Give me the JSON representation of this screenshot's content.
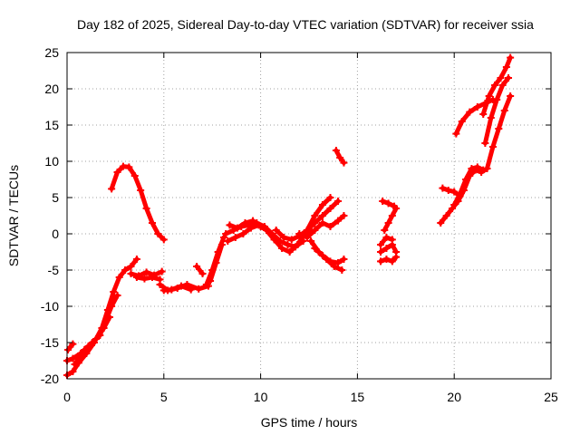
{
  "chart_data": {
    "type": "scatter",
    "title": "Day 182 of 2025, Sidereal Day-to-day VTEC variation (SDTVAR) for receiver ssia",
    "xlabel": "GPS time / hours",
    "ylabel": "SDTVAR / TECUs",
    "xlim": [
      0,
      25
    ],
    "ylim": [
      -20,
      25
    ],
    "xticks": [
      0,
      5,
      10,
      15,
      20,
      25
    ],
    "yticks": [
      -20,
      -15,
      -10,
      -5,
      0,
      5,
      10,
      15,
      20,
      25
    ],
    "grid": true,
    "legend": "none",
    "series_color": "#ff0000",
    "series": [
      {
        "segments": [
          {
            "x": [
              0.0,
              0.3,
              0.6,
              1.0,
              1.4,
              1.8,
              2.1,
              2.4,
              2.7,
              3.0,
              3.3,
              3.6
            ],
            "y": [
              -19.5,
              -19.0,
              -17.8,
              -16.5,
              -15.0,
              -13.0,
              -10.5,
              -8.0,
              -6.0,
              -5.0,
              -4.5,
              -3.5
            ]
          },
          {
            "x": [
              0.0,
              0.3,
              0.7,
              1.1,
              1.5,
              1.9,
              2.2
            ],
            "y": [
              -17.5,
              -17.2,
              -16.5,
              -15.5,
              -14.5,
              -13.0,
              -11.5
            ]
          },
          {
            "x": [
              0.05,
              0.3
            ],
            "y": [
              -16.0,
              -15.2
            ]
          },
          {
            "x": [
              0.4,
              0.9,
              1.3,
              1.7,
              2.0,
              2.3,
              2.6
            ],
            "y": [
              -18.0,
              -16.0,
              -15.0,
              -14.0,
              -12.0,
              -10.0,
              -8.5
            ]
          },
          {
            "x": [
              3.3,
              3.7,
              4.1,
              4.5,
              4.9
            ],
            "y": [
              -5.5,
              -5.8,
              -5.3,
              -5.7,
              -5.2
            ]
          },
          {
            "x": [
              3.6,
              4.0,
              4.4,
              4.8
            ],
            "y": [
              -6.0,
              -6.2,
              -6.0,
              -6.3
            ]
          },
          {
            "x": [
              2.3,
              2.6,
              2.9,
              3.2,
              3.5,
              3.8,
              4.1,
              4.4,
              4.7,
              5.0
            ],
            "y": [
              6.2,
              8.5,
              9.3,
              9.2,
              8.0,
              6.0,
              3.5,
              1.5,
              0.0,
              -0.8
            ]
          },
          {
            "x": [
              4.8,
              5.2,
              5.7,
              6.2,
              6.8,
              7.3
            ],
            "y": [
              -7.0,
              -7.8,
              -7.5,
              -7.0,
              -7.6,
              -7.2
            ]
          },
          {
            "x": [
              5.0,
              5.4,
              5.9,
              6.4
            ],
            "y": [
              -7.8,
              -7.7,
              -7.2,
              -7.7
            ]
          },
          {
            "x": [
              6.7,
              7.0
            ],
            "y": [
              -4.5,
              -5.5
            ]
          },
          {
            "x": [
              7.2,
              7.5,
              7.8,
              8.1
            ],
            "y": [
              -7.0,
              -5.0,
              -2.5,
              -0.5
            ]
          },
          {
            "x": [
              7.4,
              7.7,
              8.0
            ],
            "y": [
              -6.5,
              -4.0,
              -1.5
            ]
          },
          {
            "x": [
              8.2,
              8.6,
              9.0,
              9.4,
              9.8,
              10.2,
              10.6,
              11.0,
              11.4,
              11.8,
              12.2
            ],
            "y": [
              0.0,
              0.5,
              1.0,
              1.2,
              1.5,
              1.0,
              0.0,
              -1.0,
              -1.5,
              -1.8,
              -1.0
            ]
          },
          {
            "x": [
              8.3,
              8.7,
              9.1,
              9.5,
              9.9,
              10.3,
              10.7,
              11.1,
              11.5,
              11.9,
              12.3,
              12.6
            ],
            "y": [
              -1.0,
              -0.5,
              0.0,
              0.8,
              1.2,
              0.5,
              -0.8,
              -2.0,
              -2.5,
              -1.5,
              0.0,
              0.5
            ]
          },
          {
            "x": [
              8.4,
              8.8,
              9.2,
              9.6,
              10.0
            ],
            "y": [
              1.2,
              0.8,
              1.5,
              1.8,
              1.0
            ]
          },
          {
            "x": [
              10.8,
              11.2,
              11.6,
              12.0,
              12.4,
              12.8,
              13.2,
              13.6,
              14.0
            ],
            "y": [
              0.5,
              -0.5,
              -0.8,
              -0.3,
              0.5,
              1.5,
              2.5,
              3.5,
              4.5
            ]
          },
          {
            "x": [
              12.0,
              12.4,
              12.8,
              13.2,
              13.6,
              14.0,
              14.3
            ],
            "y": [
              0.0,
              -0.5,
              0.5,
              1.5,
              1.0,
              1.8,
              2.5
            ]
          },
          {
            "x": [
              12.4,
              12.8,
              13.2,
              13.6
            ],
            "y": [
              0.5,
              2.5,
              4.0,
              5.0
            ]
          },
          {
            "x": [
              12.6,
              13.0,
              13.4,
              13.8,
              14.2
            ],
            "y": [
              -1.0,
              -2.5,
              -3.5,
              -4.5,
              -5.0
            ]
          },
          {
            "x": [
              12.8,
              13.2,
              13.6,
              14.0,
              14.3
            ],
            "y": [
              -2.0,
              -3.0,
              -3.8,
              -4.0,
              -3.5
            ]
          },
          {
            "x": [
              13.9,
              14.1,
              14.3
            ],
            "y": [
              11.5,
              10.5,
              9.8
            ]
          },
          {
            "x": [
              16.3,
              16.6,
              16.9
            ],
            "y": [
              4.5,
              4.2,
              3.8
            ]
          },
          {
            "x": [
              16.4,
              16.6,
              16.8,
              17.0
            ],
            "y": [
              0.5,
              1.5,
              2.5,
              3.5
            ]
          },
          {
            "x": [
              16.2,
              16.5,
              16.8
            ],
            "y": [
              -1.5,
              -0.5,
              -0.8
            ]
          },
          {
            "x": [
              16.2,
              16.5,
              16.8,
              17.0
            ],
            "y": [
              -2.5,
              -2.0,
              -1.5,
              -2.5
            ]
          },
          {
            "x": [
              16.2,
              16.5,
              16.8,
              17.0
            ],
            "y": [
              -3.8,
              -3.5,
              -3.8,
              -3.2
            ]
          },
          {
            "x": [
              19.3,
              19.6,
              19.9,
              20.2,
              20.5,
              20.8,
              21.1,
              21.4,
              21.7,
              22.0,
              22.3,
              22.6,
              22.9
            ],
            "y": [
              1.5,
              2.5,
              3.5,
              4.5,
              6.0,
              8.0,
              8.8,
              8.5,
              9.0,
              12.0,
              14.5,
              17.0,
              19.0
            ]
          },
          {
            "x": [
              19.4,
              19.7,
              20.0,
              20.3
            ],
            "y": [
              6.3,
              6.0,
              5.8,
              5.2
            ]
          },
          {
            "x": [
              20.0,
              20.3,
              20.6,
              20.9,
              21.2,
              21.5
            ],
            "y": [
              4.0,
              5.5,
              7.5,
              9.0,
              9.2,
              8.8
            ]
          },
          {
            "x": [
              20.1,
              20.4,
              20.8,
              21.2,
              21.6,
              22.0
            ],
            "y": [
              13.8,
              15.5,
              16.8,
              17.5,
              18.0,
              18.5
            ]
          },
          {
            "x": [
              21.6,
              21.9,
              22.2,
              22.5,
              22.8
            ],
            "y": [
              12.5,
              16.0,
              18.5,
              20.5,
              21.5
            ]
          },
          {
            "x": [
              21.5,
              21.8,
              22.1,
              22.4,
              22.7,
              22.9
            ],
            "y": [
              16.5,
              19.0,
              20.5,
              21.5,
              23.0,
              24.3
            ]
          }
        ]
      }
    ]
  }
}
